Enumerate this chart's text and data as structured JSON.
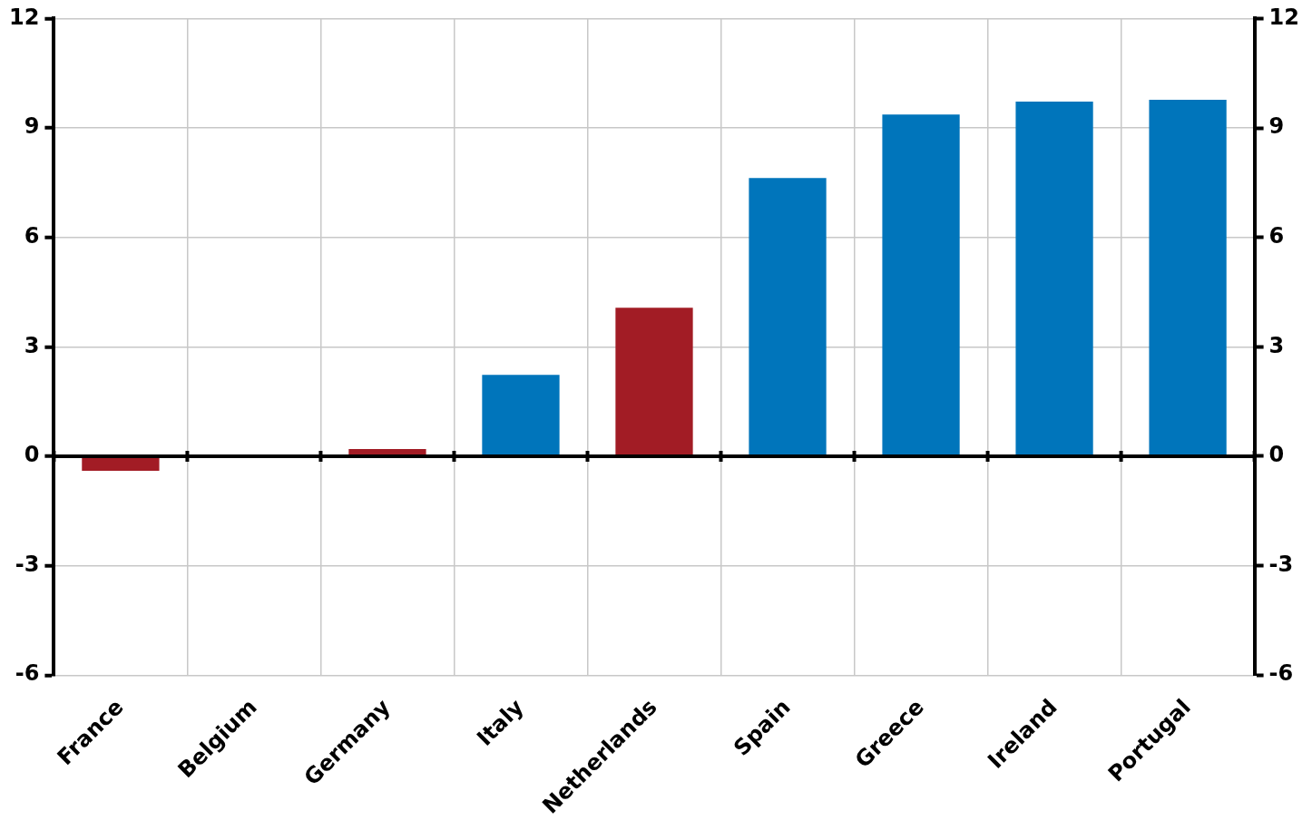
{
  "chart_data": {
    "type": "bar",
    "categories": [
      "France",
      "Belgium",
      "Germany",
      "Italy",
      "Netherlands",
      "Spain",
      "Greece",
      "Ireland",
      "Portugal"
    ],
    "values": [
      -0.4,
      0,
      0.2,
      2.23,
      4.07,
      7.63,
      9.37,
      9.72,
      9.77
    ],
    "colors": [
      "#a21c25",
      "#a21c25",
      "#a21c25",
      "#0075bb",
      "#a21c25",
      "#0075bb",
      "#0075bb",
      "#0075bb",
      "#0075bb"
    ],
    "ylim": [
      -6,
      12
    ],
    "yticks": [
      -6,
      -3,
      0,
      3,
      6,
      9,
      12
    ],
    "y2lim": [
      -6,
      12
    ],
    "y2ticks": [
      -6,
      -3,
      0,
      3,
      6,
      9,
      12
    ],
    "ref_lines": [
      {
        "axis": "y",
        "value": 0,
        "color": "#000000"
      }
    ],
    "grid": true,
    "legend": false
  }
}
